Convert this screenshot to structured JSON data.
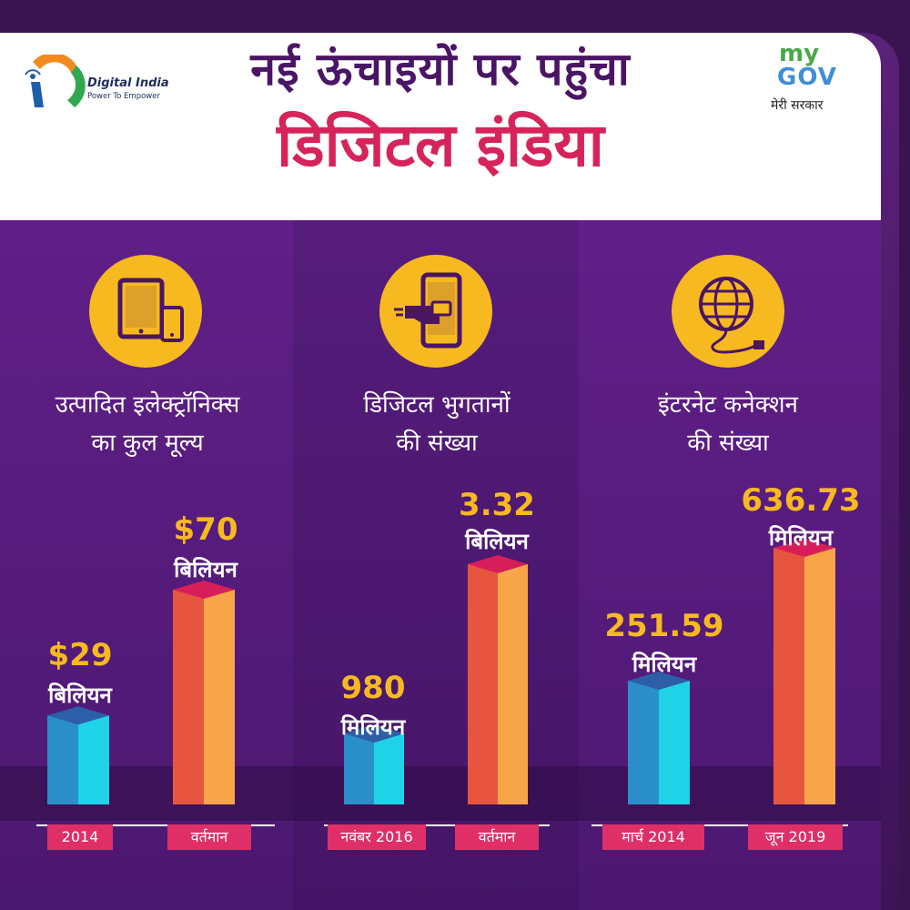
{
  "header": {
    "title_line1": "नई ऊंचाइयों पर पहुंचा",
    "title_line2": "डिजिटल इंडिया",
    "digital_india_logo": {
      "name": "Digital India",
      "tagline": "Power To Empower"
    },
    "mygov_logo": {
      "my": "my",
      "gov": "GOV",
      "subtitle": "मेरी सरकार"
    }
  },
  "colors": {
    "accent_yellow": "#f7b920",
    "accent_pink": "#e02f68",
    "title_purple": "#4a1565",
    "title_pink": "#d6245a",
    "bar_before": "#1fb3d6",
    "bar_after": "#f0704a"
  },
  "panels": [
    {
      "icon": "tablet-phone-icon",
      "title_line1": "उत्पादित इलेक्ट्रॉनिक्स",
      "title_line2": "का कुल मूल्य",
      "bars": [
        {
          "category": "2014",
          "value_label": "$29",
          "unit": "बिलियन"
        },
        {
          "category": "वर्तमान",
          "value_label": "$70",
          "unit": "बिलियन"
        }
      ]
    },
    {
      "icon": "mobile-payment-icon",
      "title_line1": "डिजिटल भुगतानों",
      "title_line2": "की संख्या",
      "bars": [
        {
          "category": "नवंबर 2016",
          "value_label": "980",
          "unit": "मिलियन"
        },
        {
          "category": "वर्तमान",
          "value_label": "3.32",
          "unit": "बिलियन"
        }
      ]
    },
    {
      "icon": "globe-cable-icon",
      "title_line1": "इंटरनेट कनेक्शन",
      "title_line2": "की संख्या",
      "bars": [
        {
          "category": "मार्च 2014",
          "value_label": "251.59",
          "unit": "मिलियन"
        },
        {
          "category": "जून 2019",
          "value_label": "636.73",
          "unit": "मिलियन"
        }
      ]
    }
  ],
  "chart_data": [
    {
      "type": "bar",
      "title": "उत्पादित इलेक्ट्रॉनिक्स का कुल मूल्य",
      "categories": [
        "2014",
        "वर्तमान"
      ],
      "values": [
        29,
        70
      ],
      "unit": "बिलियन ($)"
    },
    {
      "type": "bar",
      "title": "डिजिटल भुगतानों की संख्या",
      "categories": [
        "नवंबर 2016",
        "वर्तमान"
      ],
      "values": [
        980,
        3320
      ],
      "unit": "मिलियन"
    },
    {
      "type": "bar",
      "title": "इंटरनेट कनेक्शन की संख्या",
      "categories": [
        "मार्च 2014",
        "जून 2019"
      ],
      "values": [
        251.59,
        636.73
      ],
      "unit": "मिलियन"
    }
  ]
}
